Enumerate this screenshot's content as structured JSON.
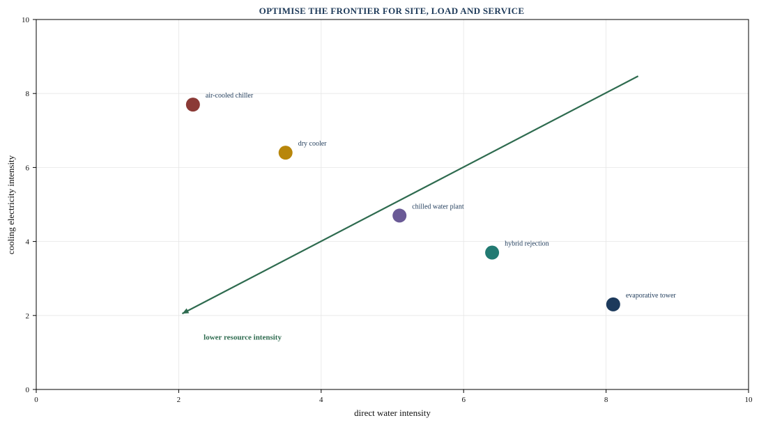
{
  "chart_data": {
    "type": "scatter",
    "title": "OPTIMISE THE FRONTIER FOR SITE, LOAD AND SERVICE",
    "xlabel": "direct water intensity",
    "ylabel": "cooling electricity intensity",
    "xlim": [
      0,
      10
    ],
    "ylim": [
      0,
      10
    ],
    "xticks": [
      0,
      2,
      4,
      6,
      8,
      10
    ],
    "yticks": [
      0,
      2,
      4,
      6,
      8,
      10
    ],
    "grid": true,
    "legend": "none",
    "points": [
      {
        "label": "air-cooled chiller",
        "x": 2.2,
        "y": 7.7,
        "color": "#8b3a36"
      },
      {
        "label": "dry cooler",
        "x": 3.5,
        "y": 6.4,
        "color": "#b8860b"
      },
      {
        "label": "chilled water plant",
        "x": 5.1,
        "y": 4.7,
        "color": "#6a5a96"
      },
      {
        "label": "hybrid rejection",
        "x": 6.4,
        "y": 3.7,
        "color": "#227a72"
      },
      {
        "label": "evaporative tower",
        "x": 8.1,
        "y": 2.3,
        "color": "#1c3a5c"
      }
    ],
    "annotation": {
      "text": "lower resource intensity",
      "color": "#2e6b4f",
      "arrow_from": [
        8.45,
        8.47
      ],
      "arrow_to": [
        2.05,
        2.05
      ],
      "text_x": 2.35,
      "text_y": 1.35
    }
  }
}
